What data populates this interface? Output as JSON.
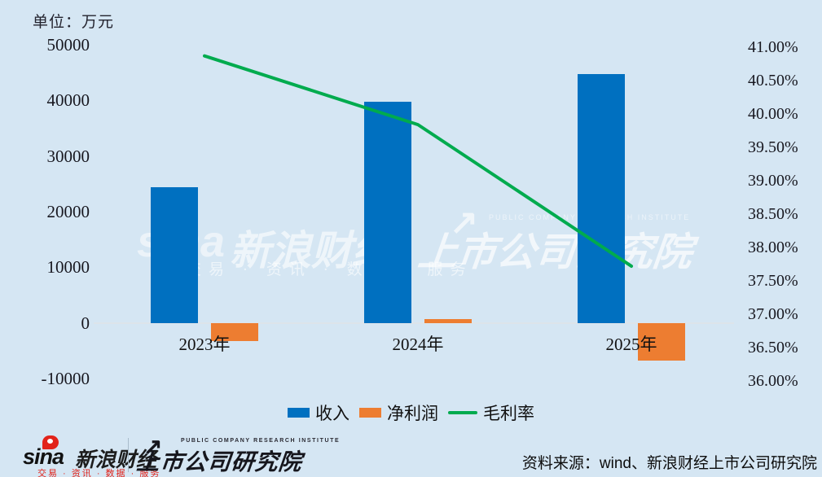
{
  "colors": {
    "background": "#d5e6f3",
    "revenue_bar": "#0070c0",
    "net_profit_bar": "#ed7d31",
    "gross_margin_line": "#00ab4e",
    "sina_red": "#e2231a"
  },
  "chart_data": {
    "type": "combo",
    "title": "",
    "unit_label": "单位：万元",
    "categories": [
      "2023年",
      "2024年",
      "2025年"
    ],
    "series": [
      {
        "name": "收入",
        "type": "bar",
        "axis": "left",
        "color": "#0070c0",
        "values": [
          24400,
          39800,
          44700
        ]
      },
      {
        "name": "净利润",
        "type": "bar",
        "axis": "left",
        "color": "#ed7d31",
        "values": [
          -3200,
          750,
          -6800
        ]
      },
      {
        "name": "毛利率",
        "type": "line",
        "axis": "right",
        "color": "#00ab4e",
        "values": [
          40.87,
          39.84,
          37.72
        ]
      }
    ],
    "left_axis": {
      "min": -10000,
      "max": 50000,
      "step": 10000,
      "ticks": [
        {
          "label": "50000",
          "value": 50000
        },
        {
          "label": "40000",
          "value": 40000
        },
        {
          "label": "30000",
          "value": 30000
        },
        {
          "label": "20000",
          "value": 20000
        },
        {
          "label": "10000",
          "value": 10000
        },
        {
          "label": "0",
          "value": 0
        },
        {
          "label": "-10000",
          "value": -10000
        }
      ]
    },
    "right_axis": {
      "min": 36.0,
      "max": 41.0,
      "step": 0.5,
      "ticks": [
        {
          "label": "41.00%",
          "value": 41.0
        },
        {
          "label": "40.50%",
          "value": 40.5
        },
        {
          "label": "40.00%",
          "value": 40.0
        },
        {
          "label": "39.50%",
          "value": 39.5
        },
        {
          "label": "39.00%",
          "value": 39.0
        },
        {
          "label": "38.50%",
          "value": 38.5
        },
        {
          "label": "38.00%",
          "value": 38.0
        },
        {
          "label": "37.50%",
          "value": 37.5
        },
        {
          "label": "37.00%",
          "value": 37.0
        },
        {
          "label": "36.50%",
          "value": 36.5
        },
        {
          "label": "36.00%",
          "value": 36.0
        }
      ]
    },
    "legend": [
      {
        "label": "收入",
        "color": "#0070c0",
        "marker": "square"
      },
      {
        "label": "净利润",
        "color": "#ed7d31",
        "marker": "square"
      },
      {
        "label": "毛利率",
        "color": "#00ab4e",
        "marker": "line"
      }
    ],
    "legend_position": "bottom",
    "grid": false
  },
  "watermark": {
    "sina": "sina",
    "brand": "新浪财经",
    "services": "交易 · 资讯 · 数据 · 服务",
    "arrow": "↗",
    "institute_en": "PUBLIC COMPANY RESEARCH INSTITUTE",
    "institute": "上市公司研究院"
  },
  "footer": {
    "sina_word": "sina",
    "sina_brand": "新浪财经",
    "sina_sub": "交易 · 资讯 · 数据 · 服务",
    "institute_arrow": "↗",
    "institute_en": "PUBLIC COMPANY RESEARCH INSTITUTE",
    "institute": "上市公司研究院"
  },
  "source": {
    "text": "资料来源：wind、新浪财经上市公司研究院"
  }
}
